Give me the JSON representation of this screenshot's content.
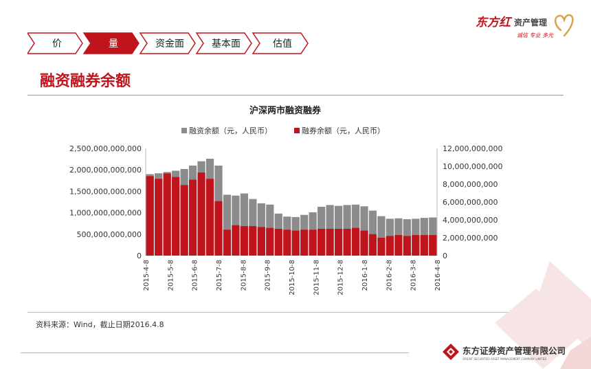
{
  "header": {
    "brand_name": "东方红",
    "brand_product": "资产管理",
    "brand_slogan": "诚信 专业 多元"
  },
  "nav": {
    "tabs": [
      {
        "label": "价",
        "active": false
      },
      {
        "label": "量",
        "active": true
      },
      {
        "label": "资金面",
        "active": false
      },
      {
        "label": "基本面",
        "active": false
      },
      {
        "label": "估值",
        "active": false
      }
    ]
  },
  "section_title": "融资融券余额",
  "chart_data": {
    "type": "bar",
    "title": "沪深两市融资融券",
    "legend_position": "top",
    "series": [
      {
        "name": "融资余额（元，人民币）",
        "axis": "left",
        "color": "#8c8c8c",
        "values": [
          1900000000000,
          1920000000000,
          1950000000000,
          1980000000000,
          2020000000000,
          2100000000000,
          2200000000000,
          2260000000000,
          2100000000000,
          1420000000000,
          1400000000000,
          1450000000000,
          1320000000000,
          1220000000000,
          1190000000000,
          980000000000,
          910000000000,
          900000000000,
          950000000000,
          1010000000000,
          1140000000000,
          1180000000000,
          1160000000000,
          1180000000000,
          1190000000000,
          1150000000000,
          1050000000000,
          920000000000,
          860000000000,
          870000000000,
          850000000000,
          860000000000,
          880000000000,
          890000000000
        ]
      },
      {
        "name": "融券余额（元，人民币）",
        "axis": "right",
        "color": "#c0141c",
        "values": [
          8900000000,
          8600000000,
          9200000000,
          8800000000,
          7900000000,
          8500000000,
          9300000000,
          8600000000,
          6100000000,
          2900000000,
          3400000000,
          3300000000,
          3300000000,
          3200000000,
          3100000000,
          3000000000,
          2900000000,
          2800000000,
          2900000000,
          2900000000,
          3000000000,
          3000000000,
          3000000000,
          3000000000,
          3100000000,
          2800000000,
          2400000000,
          2000000000,
          2200000000,
          2300000000,
          2200000000,
          2300000000,
          2300000000,
          2300000000
        ]
      }
    ],
    "y_left": {
      "min": 0,
      "max": 2500000000000,
      "ticks": [
        "0",
        "500,000,000,000",
        "1,000,000,000,000",
        "1,500,000,000,000",
        "2,000,000,000,000",
        "2,500,000,000,000"
      ]
    },
    "y_right": {
      "min": 0,
      "max": 12000000000,
      "ticks": [
        "0",
        "2,000,000,000",
        "4,000,000,000",
        "6,000,000,000",
        "8,000,000,000",
        "10,000,000,000",
        "12,000,000,000"
      ]
    },
    "x_ticks": [
      "2015-4-8",
      "2015-5-8",
      "2015-6-8",
      "2015-7-8",
      "2015-8-8",
      "2015-9-8",
      "2015-10-8",
      "2015-11-8",
      "2015-12-8",
      "2016-1-8",
      "2016-2-8",
      "2016-3-8",
      "2016-4-8"
    ],
    "x_range": [
      "2015-4-8",
      "2016-4-8"
    ],
    "grid": false
  },
  "source_note": "资料来源：Wind，截止日期2016.4.8",
  "footer": {
    "company_cn": "东方证券资产管理有限公司",
    "company_en": "ORIENT SECURITIES ASSET MANAGEMENT COMPANY LIMITED"
  },
  "colors": {
    "accent": "#c0141c",
    "bar_gray": "#8c8c8c",
    "rule": "#9a9a9a"
  }
}
